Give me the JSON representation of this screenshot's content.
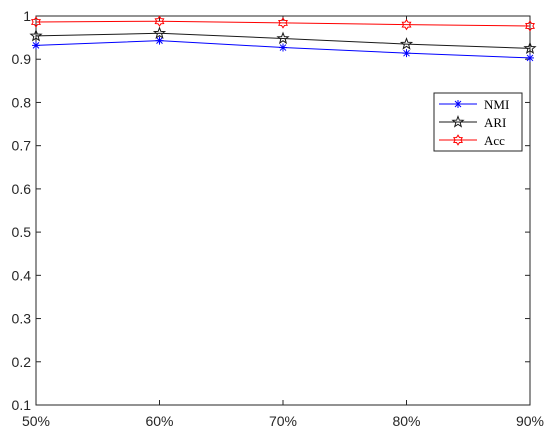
{
  "chart_data": {
    "type": "line",
    "x": [
      "50%",
      "60%",
      "70%",
      "80%",
      "90%"
    ],
    "series": [
      {
        "name": "NMI",
        "values": [
          0.932,
          0.943,
          0.927,
          0.914,
          0.903
        ],
        "color": "#0000ff",
        "marker": "asterisk"
      },
      {
        "name": "ARI",
        "values": [
          0.954,
          0.96,
          0.948,
          0.935,
          0.925
        ],
        "color": "#1a1a1a",
        "marker": "pentagram"
      },
      {
        "name": "Acc",
        "values": [
          0.986,
          0.988,
          0.984,
          0.98,
          0.977
        ],
        "color": "#ff0000",
        "marker": "hexagram"
      }
    ],
    "ylim": [
      0.1,
      1.0
    ],
    "yticks": [
      "0.1",
      "0.2",
      "0.3",
      "0.4",
      "0.5",
      "0.6",
      "0.7",
      "0.8",
      "0.9",
      "1"
    ],
    "grid": false,
    "legend_position": "right"
  }
}
